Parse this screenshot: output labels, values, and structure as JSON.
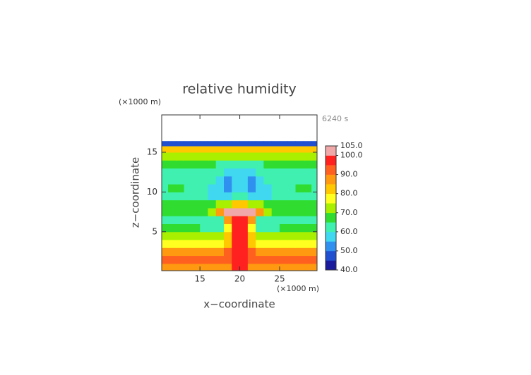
{
  "chart_data": {
    "type": "contour",
    "title": "relative humidity",
    "time_label": "6240 s",
    "x_unit": "(×1000 m)",
    "y_unit": "(×1000 m)",
    "xlabel": "x−coordinate",
    "ylabel": "z−coordinate",
    "xlim": [
      10.2,
      29.7
    ],
    "ylim": [
      0.1,
      19.7
    ],
    "xticks": [
      15,
      20,
      25
    ],
    "yticks": [
      5,
      10,
      15
    ],
    "x": [
      10.5,
      11.5,
      12.5,
      13.5,
      14.5,
      15.5,
      16.5,
      17.5,
      18.5,
      19.5,
      20.5,
      21.5,
      22.5,
      23.5,
      24.5,
      25.5,
      26.5,
      27.5,
      28.5,
      29.5
    ],
    "y": [
      0.5,
      1.5,
      2.5,
      3.5,
      4.5,
      5.5,
      6.5,
      7.5,
      8.5,
      9.5,
      10.5,
      11.5,
      12.5,
      13.5,
      14.5,
      15.5,
      16.1
    ],
    "values": [
      [
        88,
        88,
        88,
        88,
        88,
        88,
        88,
        88,
        88,
        97,
        97,
        88,
        88,
        88,
        88,
        88,
        88,
        88,
        88,
        88
      ],
      [
        92,
        92,
        92,
        92,
        92,
        92,
        92,
        92,
        92,
        97,
        97,
        92,
        92,
        92,
        92,
        92,
        92,
        92,
        92,
        92
      ],
      [
        88,
        88,
        88,
        88,
        88,
        88,
        88,
        88,
        90,
        97,
        97,
        90,
        88,
        88,
        88,
        88,
        88,
        88,
        88,
        88
      ],
      [
        78,
        78,
        78,
        78,
        78,
        78,
        78,
        78,
        84,
        97,
        97,
        84,
        78,
        78,
        78,
        78,
        78,
        78,
        78,
        78
      ],
      [
        72,
        72,
        72,
        72,
        72,
        72,
        72,
        70,
        80,
        97,
        97,
        80,
        70,
        72,
        72,
        72,
        72,
        72,
        72,
        72
      ],
      [
        66,
        66,
        66,
        66,
        66,
        60,
        60,
        60,
        75,
        97,
        97,
        75,
        60,
        60,
        60,
        66,
        66,
        66,
        66,
        66
      ],
      [
        64,
        64,
        64,
        64,
        64,
        64,
        64,
        64,
        85,
        97,
        97,
        85,
        64,
        64,
        64,
        64,
        64,
        64,
        64,
        64
      ],
      [
        68,
        68,
        68,
        68,
        68,
        68,
        72,
        85,
        101,
        102,
        102,
        101,
        85,
        72,
        68,
        68,
        68,
        68,
        68,
        68
      ],
      [
        66,
        66,
        66,
        66,
        66,
        66,
        66,
        70,
        72,
        80,
        80,
        72,
        70,
        66,
        66,
        66,
        66,
        66,
        66,
        66
      ],
      [
        62,
        62,
        62,
        62,
        62,
        62,
        58,
        58,
        58,
        60,
        60,
        58,
        58,
        58,
        62,
        62,
        62,
        62,
        62,
        62
      ],
      [
        63,
        67,
        67,
        63,
        63,
        63,
        57,
        57,
        52,
        56,
        56,
        52,
        57,
        57,
        63,
        63,
        63,
        67,
        67,
        63
      ],
      [
        60,
        60,
        60,
        60,
        60,
        60,
        60,
        56,
        53,
        57,
        57,
        53,
        56,
        60,
        60,
        60,
        60,
        60,
        60,
        60
      ],
      [
        61,
        61,
        61,
        61,
        61,
        61,
        61,
        61,
        58,
        58,
        58,
        58,
        61,
        61,
        61,
        61,
        61,
        61,
        61,
        61
      ],
      [
        66,
        66,
        66,
        66,
        66,
        66,
        66,
        63,
        63,
        63,
        63,
        63,
        63,
        66,
        66,
        66,
        66,
        66,
        66,
        66
      ],
      [
        73,
        73,
        73,
        73,
        73,
        73,
        73,
        73,
        70,
        70,
        70,
        70,
        73,
        73,
        73,
        73,
        73,
        73,
        73,
        73
      ],
      [
        80,
        80,
        80,
        80,
        80,
        80,
        80,
        80,
        80,
        80,
        80,
        80,
        80,
        80,
        80,
        80,
        80,
        80,
        80,
        80
      ],
      [
        45,
        45,
        45,
        45,
        45,
        45,
        45,
        45,
        45,
        45,
        45,
        45,
        45,
        45,
        45,
        45,
        45,
        45,
        45,
        45
      ]
    ],
    "colorbar": {
      "ticks": [
        {
          "value": 105,
          "label": "105.0"
        },
        {
          "value": 100,
          "label": "100.0"
        },
        {
          "value": 90,
          "label": "90.0"
        },
        {
          "value": 80,
          "label": "80.0"
        },
        {
          "value": 70,
          "label": "70.0"
        },
        {
          "value": 60,
          "label": "60.0"
        },
        {
          "value": 50,
          "label": "50.0"
        },
        {
          "value": 40,
          "label": "40.0"
        }
      ],
      "clim": [
        40,
        105
      ],
      "colors": [
        "#1a1a9c",
        "#2050d0",
        "#3090f0",
        "#40d8f0",
        "#40f0b0",
        "#30dc30",
        "#a8f000",
        "#ffff20",
        "#ffc800",
        "#ff9a10",
        "#ff6020",
        "#ff2020",
        "#f0a8a8"
      ]
    }
  }
}
